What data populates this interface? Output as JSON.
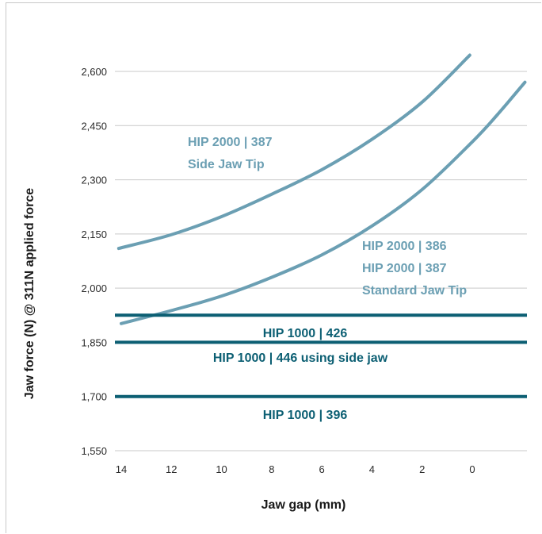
{
  "colors": {
    "curve": "#6b9fb3",
    "hline": "#0c5f73",
    "grid": "#c9c9c9",
    "text": "#2b2b2b"
  },
  "chart_data": {
    "type": "line",
    "title": "",
    "xlabel": "Jaw gap (mm)",
    "ylabel": "Jaw force (N) @ 311N applied force",
    "x_ticks": [
      14,
      12,
      10,
      8,
      6,
      4,
      2,
      0
    ],
    "x_tick_labels": [
      "14",
      "12",
      "10",
      "8",
      "6",
      "4",
      "2",
      "0"
    ],
    "y_ticks": [
      1550,
      1700,
      1850,
      2000,
      2150,
      2300,
      2450,
      2600
    ],
    "y_tick_labels": [
      "1,550",
      "1,700",
      "1,850",
      "2,000",
      "2,150",
      "2,300",
      "2,450",
      "2,600"
    ],
    "xlim": [
      14.6,
      -2.2
    ],
    "ylim": [
      1550,
      2650
    ],
    "x_reversed": true,
    "grid": true,
    "series": [
      {
        "kind": "curve",
        "label_lines": [
          "HIP 2000 | 387",
          "Side Jaw Tip"
        ],
        "x": [
          14.1,
          12,
          10,
          8,
          6,
          4,
          2,
          0.1
        ],
        "y": [
          2110,
          2148,
          2198,
          2260,
          2328,
          2412,
          2515,
          2645
        ]
      },
      {
        "kind": "curve",
        "label_lines": [
          "HIP 2000 | 386",
          "HIP 2000 | 387",
          "Standard Jaw Tip"
        ],
        "x": [
          14.0,
          12,
          10,
          8,
          6,
          4,
          2,
          0,
          -1,
          -2.1
        ],
        "y": [
          1902,
          1938,
          1978,
          2030,
          2092,
          2172,
          2273,
          2405,
          2480,
          2570
        ]
      },
      {
        "kind": "hline",
        "label_lines": [
          "HIP 1000 | 426"
        ],
        "y": 1925
      },
      {
        "kind": "hline",
        "label_lines": [
          "HIP 1000 | 446 using side jaw"
        ],
        "y": 1850
      },
      {
        "kind": "hline",
        "label_lines": [
          "HIP 1000 | 396"
        ],
        "y": 1700
      }
    ]
  }
}
